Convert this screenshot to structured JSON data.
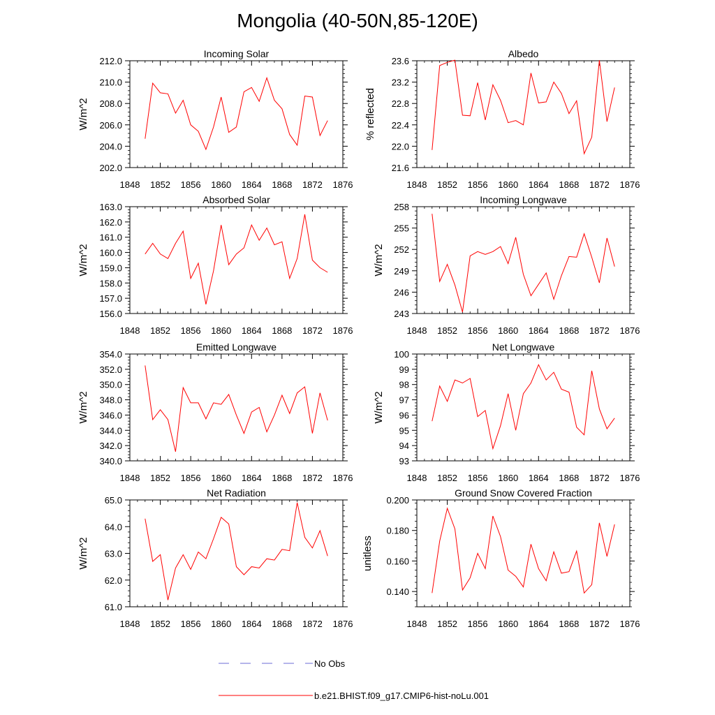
{
  "figure": {
    "title": "Mongolia (40-50N,85-120E)",
    "series_color": "#ff0000",
    "obs_color": "#6b6bd6"
  },
  "legend": {
    "obs_label": "No Obs",
    "model_label": "b.e21.BHIST.f09_g17.CMIP6-hist-noLu.001"
  },
  "chart_data": [
    {
      "type": "line",
      "title": "Incoming Solar",
      "ylabel": "W/m^2",
      "xlim": [
        1848,
        1876
      ],
      "xticks": [
        1848,
        1852,
        1856,
        1860,
        1864,
        1868,
        1872,
        1876
      ],
      "ylim": [
        202,
        212
      ],
      "yticks": [
        202,
        204,
        206,
        208,
        210,
        212
      ],
      "ydec": 1,
      "x": [
        1850,
        1851,
        1852,
        1853,
        1854,
        1855,
        1856,
        1857,
        1858,
        1859,
        1860,
        1861,
        1862,
        1863,
        1864,
        1865,
        1866,
        1867,
        1868,
        1869,
        1870,
        1871,
        1872,
        1873,
        1874
      ],
      "series": [
        {
          "name": "b.e21.BHIST.f09_g17.CMIP6-hist-noLu.001",
          "values": [
            204.7,
            209.9,
            209.0,
            208.9,
            207.1,
            208.3,
            206.0,
            205.4,
            203.7,
            205.8,
            208.6,
            205.3,
            205.8,
            209.1,
            209.5,
            208.2,
            210.4,
            208.3,
            207.5,
            205.1,
            204.1,
            208.7,
            208.6,
            205.0,
            206.4
          ]
        }
      ]
    },
    {
      "type": "line",
      "title": "Albedo",
      "ylabel": "% reflected",
      "xlim": [
        1848,
        1876
      ],
      "xticks": [
        1848,
        1852,
        1856,
        1860,
        1864,
        1868,
        1872,
        1876
      ],
      "ylim": [
        21.6,
        23.6
      ],
      "yticks": [
        21.6,
        22.0,
        22.4,
        22.8,
        23.2,
        23.6
      ],
      "ydec": 1,
      "x": [
        1850,
        1851,
        1852,
        1853,
        1854,
        1855,
        1856,
        1857,
        1858,
        1859,
        1860,
        1861,
        1862,
        1863,
        1864,
        1865,
        1866,
        1867,
        1868,
        1869,
        1870,
        1871,
        1872,
        1873,
        1874
      ],
      "series": [
        {
          "name": "b.e21.BHIST.f09_g17.CMIP6-hist-noLu.001",
          "values": [
            21.93,
            23.51,
            23.57,
            23.61,
            22.58,
            22.57,
            23.19,
            22.49,
            23.15,
            22.86,
            22.44,
            22.48,
            22.4,
            23.37,
            22.81,
            22.83,
            23.2,
            22.99,
            22.61,
            22.85,
            21.86,
            22.17,
            23.61,
            22.46,
            23.1
          ]
        }
      ]
    },
    {
      "type": "line",
      "title": "Absorbed Solar",
      "ylabel": "W/m^2",
      "xlim": [
        1848,
        1876
      ],
      "xticks": [
        1848,
        1852,
        1856,
        1860,
        1864,
        1868,
        1872,
        1876
      ],
      "ylim": [
        156,
        163
      ],
      "yticks": [
        156,
        157,
        158,
        159,
        160,
        161,
        162,
        163
      ],
      "ydec": 1,
      "x": [
        1850,
        1851,
        1852,
        1853,
        1854,
        1855,
        1856,
        1857,
        1858,
        1859,
        1860,
        1861,
        1862,
        1863,
        1864,
        1865,
        1866,
        1867,
        1868,
        1869,
        1870,
        1871,
        1872,
        1873,
        1874
      ],
      "series": [
        {
          "name": "b.e21.BHIST.f09_g17.CMIP6-hist-noLu.001",
          "values": [
            159.9,
            160.6,
            159.9,
            159.6,
            160.6,
            161.4,
            158.3,
            159.3,
            156.6,
            158.8,
            161.8,
            159.2,
            159.9,
            160.3,
            161.8,
            160.8,
            161.6,
            160.5,
            160.7,
            158.3,
            159.6,
            162.5,
            159.5,
            159.0,
            158.7
          ]
        }
      ]
    },
    {
      "type": "line",
      "title": "Incoming Longwave",
      "ylabel": "W/m^2",
      "xlim": [
        1848,
        1876
      ],
      "xticks": [
        1848,
        1852,
        1856,
        1860,
        1864,
        1868,
        1872,
        1876
      ],
      "ylim": [
        243,
        258
      ],
      "yticks": [
        243,
        246,
        249,
        252,
        255,
        258
      ],
      "ydec": 0,
      "x": [
        1850,
        1851,
        1852,
        1853,
        1854,
        1855,
        1856,
        1857,
        1858,
        1859,
        1860,
        1861,
        1862,
        1863,
        1864,
        1865,
        1866,
        1867,
        1868,
        1869,
        1870,
        1871,
        1872,
        1873,
        1874
      ],
      "series": [
        {
          "name": "b.e21.BHIST.f09_g17.CMIP6-hist-noLu.001",
          "values": [
            257.0,
            247.5,
            249.9,
            247.0,
            243.2,
            251.1,
            251.7,
            251.3,
            251.7,
            252.4,
            250.0,
            253.7,
            248.5,
            245.5,
            247.1,
            248.7,
            245.0,
            248.3,
            251.0,
            250.9,
            254.2,
            250.9,
            247.3,
            253.6,
            249.6
          ]
        }
      ]
    },
    {
      "type": "line",
      "title": "Emitted Longwave",
      "ylabel": "W/m^2",
      "xlim": [
        1848,
        1876
      ],
      "xticks": [
        1848,
        1852,
        1856,
        1860,
        1864,
        1868,
        1872,
        1876
      ],
      "ylim": [
        340,
        354
      ],
      "yticks": [
        340,
        342,
        344,
        346,
        348,
        350,
        352,
        354
      ],
      "ydec": 1,
      "x": [
        1850,
        1851,
        1852,
        1853,
        1854,
        1855,
        1856,
        1857,
        1858,
        1859,
        1860,
        1861,
        1862,
        1863,
        1864,
        1865,
        1866,
        1867,
        1868,
        1869,
        1870,
        1871,
        1872,
        1873,
        1874
      ],
      "series": [
        {
          "name": "b.e21.BHIST.f09_g17.CMIP6-hist-noLu.001",
          "values": [
            352.5,
            345.4,
            346.7,
            345.4,
            341.2,
            349.6,
            347.6,
            347.6,
            345.5,
            347.6,
            347.4,
            348.7,
            346.0,
            343.6,
            346.4,
            347.0,
            343.8,
            346.0,
            348.6,
            346.2,
            348.9,
            349.7,
            343.6,
            348.9,
            345.3
          ]
        }
      ]
    },
    {
      "type": "line",
      "title": "Net Longwave",
      "ylabel": "W/m^2",
      "xlim": [
        1848,
        1876
      ],
      "xticks": [
        1848,
        1852,
        1856,
        1860,
        1864,
        1868,
        1872,
        1876
      ],
      "ylim": [
        93,
        100
      ],
      "yticks": [
        93,
        94,
        95,
        96,
        97,
        98,
        99,
        100
      ],
      "ydec": 0,
      "x": [
        1850,
        1851,
        1852,
        1853,
        1854,
        1855,
        1856,
        1857,
        1858,
        1859,
        1860,
        1861,
        1862,
        1863,
        1864,
        1865,
        1866,
        1867,
        1868,
        1869,
        1870,
        1871,
        1872,
        1873,
        1874
      ],
      "series": [
        {
          "name": "b.e21.BHIST.f09_g17.CMIP6-hist-noLu.001",
          "values": [
            95.6,
            97.9,
            96.9,
            98.3,
            98.1,
            98.4,
            95.9,
            96.3,
            93.8,
            95.3,
            97.4,
            95.0,
            97.4,
            98.1,
            99.3,
            98.3,
            98.8,
            97.7,
            97.5,
            95.2,
            94.7,
            98.9,
            96.4,
            95.1,
            95.8
          ]
        }
      ]
    },
    {
      "type": "line",
      "title": "Net Radiation",
      "ylabel": "W/m^2",
      "xlim": [
        1848,
        1876
      ],
      "xticks": [
        1848,
        1852,
        1856,
        1860,
        1864,
        1868,
        1872,
        1876
      ],
      "ylim": [
        61,
        65
      ],
      "yticks": [
        61,
        62,
        63,
        64,
        65
      ],
      "ydec": 1,
      "x": [
        1850,
        1851,
        1852,
        1853,
        1854,
        1855,
        1856,
        1857,
        1858,
        1859,
        1860,
        1861,
        1862,
        1863,
        1864,
        1865,
        1866,
        1867,
        1868,
        1869,
        1870,
        1871,
        1872,
        1873,
        1874
      ],
      "series": [
        {
          "name": "b.e21.BHIST.f09_g17.CMIP6-hist-noLu.001",
          "values": [
            64.3,
            62.7,
            62.95,
            61.25,
            62.45,
            62.95,
            62.4,
            63.05,
            62.8,
            63.55,
            64.35,
            64.1,
            62.5,
            62.2,
            62.5,
            62.45,
            62.8,
            62.75,
            63.15,
            63.1,
            64.9,
            63.6,
            63.2,
            63.85,
            62.9
          ]
        }
      ]
    },
    {
      "type": "line",
      "title": "Ground Snow Covered Fraction",
      "ylabel": "unitless",
      "xlim": [
        1848,
        1876
      ],
      "xticks": [
        1848,
        1852,
        1856,
        1860,
        1864,
        1868,
        1872,
        1876
      ],
      "ylim": [
        0.13,
        0.2
      ],
      "yticks": [
        0.14,
        0.16,
        0.18,
        0.2
      ],
      "ydec": 3,
      "x": [
        1850,
        1851,
        1852,
        1853,
        1854,
        1855,
        1856,
        1857,
        1858,
        1859,
        1860,
        1861,
        1862,
        1863,
        1864,
        1865,
        1866,
        1867,
        1868,
        1869,
        1870,
        1871,
        1872,
        1873,
        1874
      ],
      "series": [
        {
          "name": "b.e21.BHIST.f09_g17.CMIP6-hist-noLu.001",
          "values": [
            0.139,
            0.173,
            0.1945,
            0.181,
            0.141,
            0.149,
            0.165,
            0.155,
            0.1895,
            0.176,
            0.154,
            0.15,
            0.143,
            0.171,
            0.155,
            0.147,
            0.166,
            0.152,
            0.153,
            0.1665,
            0.139,
            0.1445,
            0.185,
            0.163,
            0.184
          ]
        }
      ]
    }
  ]
}
